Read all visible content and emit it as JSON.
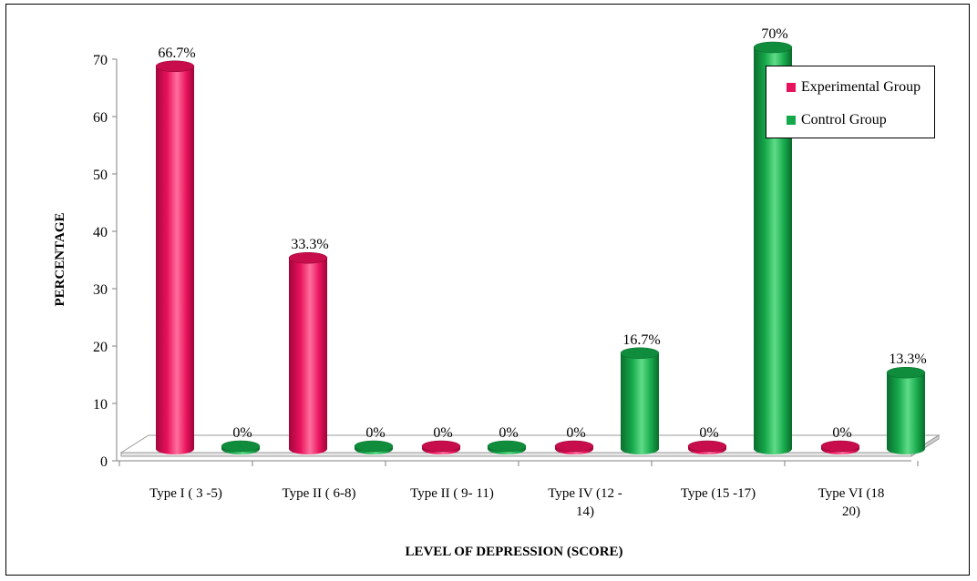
{
  "chart_data": {
    "type": "bar",
    "categories": [
      "Type I ( 3 -5)",
      "Type II ( 6-8)",
      "Type II ( 9- 11)",
      "Type IV (12 - 14)",
      "Type (15 -17)",
      "Type VI (18 20)"
    ],
    "category_lines": [
      [
        "Type I ( 3 -5)"
      ],
      [
        "Type II ( 6-8)"
      ],
      [
        "Type II ( 9- 11)"
      ],
      [
        "Type IV (12 -",
        "14)"
      ],
      [
        "Type (15 -17)"
      ],
      [
        "Type VI (18",
        "20)"
      ]
    ],
    "series": [
      {
        "name": "Experimental Group",
        "color": "#e8125c",
        "values": [
          66.7,
          33.3,
          0,
          0,
          0,
          0
        ],
        "labels": [
          "66.7%",
          "33.3%",
          "0%",
          "0%",
          "0%",
          "0%"
        ]
      },
      {
        "name": "Control Group",
        "color": "#14a84a",
        "values": [
          0,
          0,
          0,
          16.7,
          70,
          13.3
        ],
        "labels": [
          "0%",
          "0%",
          "0%",
          "16.7%",
          "70%",
          "13.3%"
        ]
      }
    ],
    "ylim": [
      0,
      70
    ],
    "yticks": [
      0,
      10,
      20,
      30,
      40,
      50,
      60,
      70
    ],
    "xlabel": "LEVEL OF DEPRESSION  (SCORE)",
    "ylabel": "PERCENTAGE",
    "legend_position": "top-right",
    "style": "3d-cylinder"
  }
}
